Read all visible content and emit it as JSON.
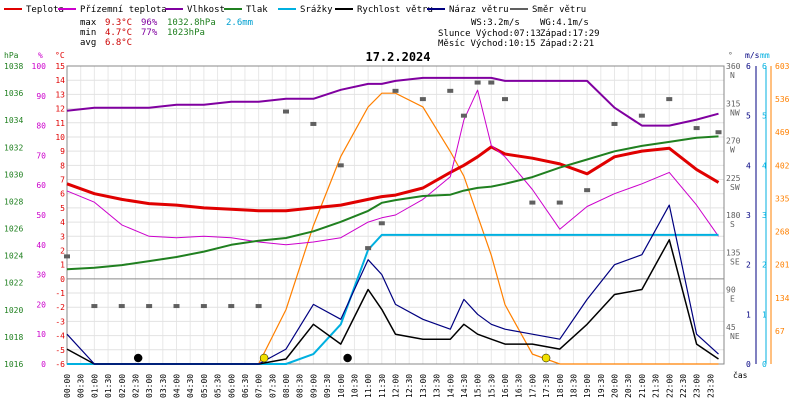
{
  "chart_data": {
    "type": "line",
    "title": "17.2.2024",
    "legend": [
      {
        "label": "Teplota",
        "color": "#e00000"
      },
      {
        "label": "Přízemní teplota",
        "color": "#cc00cc"
      },
      {
        "label": "Vlhkost",
        "color": "#8000a0"
      },
      {
        "label": "Tlak",
        "color": "#208020"
      },
      {
        "label": "Srážky",
        "color": "#00b0e0"
      },
      {
        "label": "Rychlost větru",
        "color": "#000000"
      },
      {
        "label": "Náraz větru",
        "color": "#000080"
      },
      {
        "label": "Směr větru",
        "color": "#606060"
      }
    ],
    "stats": [
      {
        "label": "max",
        "temp": "9.3°C",
        "hum": "96%",
        "press": "1032.8hPa",
        "rain": "2.6mm"
      },
      {
        "label": "min",
        "temp": "4.7°C",
        "hum": "77%",
        "press": "1023hPa",
        "rain": ""
      },
      {
        "label": "avg",
        "temp": "6.8°C",
        "hum": "",
        "press": "",
        "rain": ""
      }
    ],
    "info": {
      "ws": "WS:3.2m/s",
      "wg": "WG:4.1m/s",
      "sun_rise": "Slunce  Východ:07:13",
      "sun_set": "Západ:17:29",
      "moon_rise": "Měsíc  Východ:10:15",
      "moon_set": "Západ:2:21"
    },
    "axes": {
      "hpa": {
        "label": "hPa",
        "ticks": [
          "1016",
          "1018",
          "1020",
          "1022",
          "1024",
          "1026",
          "1028",
          "1030",
          "1032",
          "1034",
          "1036",
          "1038"
        ],
        "color": "#208020"
      },
      "pct": {
        "label": "%",
        "ticks": [
          "0",
          "10",
          "20",
          "30",
          "40",
          "50",
          "60",
          "70",
          "80",
          "90",
          "100"
        ],
        "color": "#cc00cc"
      },
      "deg": {
        "label": "°C",
        "ticks": [
          "-6",
          "-5",
          "-4",
          "-3",
          "-2",
          "-1",
          "0",
          "1",
          "2",
          "3",
          "4",
          "5",
          "6",
          "7",
          "8",
          "9",
          "10",
          "11",
          "12",
          "13",
          "14",
          "15"
        ],
        "color": "#e00000"
      },
      "dir": {
        "label": "°",
        "ticks": [
          "45 NE",
          "90 E",
          "135 SE",
          "180 S",
          "225 SW",
          "270 W",
          "315 NW",
          "360 N"
        ],
        "color": "#606060"
      },
      "ms": {
        "label": "m/s",
        "ticks": [
          "0",
          "1",
          "2",
          "3",
          "4",
          "5",
          "6"
        ],
        "color": "#000080"
      },
      "mm": {
        "label": "mm",
        "ticks": [
          "0",
          "1",
          "2",
          "3",
          "4",
          "5",
          "6"
        ],
        "color": "#00b0e0"
      },
      "solar": {
        "ticks": [
          "67",
          "134",
          "201",
          "268",
          "335",
          "402",
          "469",
          "536",
          "603"
        ],
        "color": "#ff8000"
      },
      "x_label": "čas",
      "x_ticks": [
        "00:00",
        "00:30",
        "01:00",
        "01:30",
        "02:00",
        "02:30",
        "03:00",
        "03:30",
        "04:00",
        "04:30",
        "05:00",
        "05:30",
        "06:00",
        "06:30",
        "07:00",
        "07:30",
        "08:00",
        "08:30",
        "09:00",
        "09:30",
        "10:00",
        "10:30",
        "11:00",
        "11:30",
        "12:00",
        "12:30",
        "13:00",
        "13:30",
        "14:00",
        "14:30",
        "15:00",
        "15:30",
        "16:00",
        "16:30",
        "17:00",
        "17:30",
        "18:00",
        "18:30",
        "19:00",
        "19:30",
        "20:00",
        "20:30",
        "21:00",
        "21:30",
        "22:00",
        "22:30",
        "23:00",
        "23:30"
      ]
    },
    "x_hours": [
      0,
      1,
      2,
      3,
      4,
      5,
      6,
      7,
      8,
      9,
      10,
      11,
      11.5,
      12,
      13,
      14,
      14.5,
      15,
      15.5,
      16,
      17,
      18,
      19,
      20,
      21,
      22,
      23,
      23.8
    ],
    "series": [
      {
        "name": "Teplota",
        "unit": "°C",
        "values": [
          6.7,
          6.0,
          5.6,
          5.3,
          5.2,
          5.0,
          4.9,
          4.8,
          4.8,
          5.0,
          5.2,
          5.6,
          5.8,
          5.9,
          6.4,
          7.5,
          8.0,
          8.6,
          9.3,
          8.8,
          8.5,
          8.1,
          7.4,
          8.6,
          9.0,
          9.2,
          7.7,
          6.8
        ]
      },
      {
        "name": "Přízemní teplota",
        "unit": "°C",
        "values": [
          6.2,
          5.4,
          3.8,
          3.0,
          2.9,
          3.0,
          2.9,
          2.6,
          2.4,
          2.6,
          2.9,
          4.0,
          4.3,
          4.5,
          5.6,
          7.2,
          11.2,
          13.3,
          9.4,
          8.6,
          6.3,
          3.5,
          5.1,
          6.0,
          6.7,
          7.5,
          5.2,
          3.0
        ]
      },
      {
        "name": "Vlhkost",
        "unit": "%",
        "values": [
          85,
          86,
          86,
          86,
          87,
          87,
          88,
          88,
          89,
          89,
          92,
          94,
          94,
          95,
          96,
          96,
          96,
          96,
          96,
          95,
          95,
          95,
          95,
          86,
          80,
          80,
          82,
          84
        ]
      },
      {
        "name": "Tlak",
        "unit": "hPa",
        "values": [
          1023.0,
          1023.1,
          1023.3,
          1023.6,
          1023.9,
          1024.3,
          1024.8,
          1025.1,
          1025.3,
          1025.8,
          1026.5,
          1027.3,
          1027.9,
          1028.1,
          1028.4,
          1028.5,
          1028.8,
          1029.0,
          1029.1,
          1029.3,
          1029.8,
          1030.5,
          1031.1,
          1031.7,
          1032.1,
          1032.4,
          1032.7,
          1032.8
        ]
      },
      {
        "name": "Srážky",
        "unit": "mm",
        "values": [
          0,
          0,
          0,
          0,
          0,
          0,
          0,
          0,
          0,
          0.2,
          0.8,
          2.3,
          2.6,
          2.6,
          2.6,
          2.6,
          2.6,
          2.6,
          2.6,
          2.6,
          2.6,
          2.6,
          2.6,
          2.6,
          2.6,
          2.6,
          2.6,
          2.6
        ]
      },
      {
        "name": "Rychlost větru",
        "unit": "m/s",
        "values": [
          0.3,
          0,
          0,
          0,
          0,
          0,
          0,
          0,
          0.1,
          0.8,
          0.4,
          1.5,
          1.1,
          0.6,
          0.5,
          0.5,
          0.8,
          0.6,
          0.5,
          0.4,
          0.4,
          0.3,
          0.8,
          1.4,
          1.5,
          2.5,
          0.4,
          0.1
        ]
      },
      {
        "name": "Náraz větru",
        "unit": "m/s",
        "values": [
          0.6,
          0,
          0,
          0,
          0,
          0,
          0,
          0,
          0.3,
          1.2,
          0.9,
          2.1,
          1.8,
          1.2,
          0.9,
          0.7,
          1.3,
          1.0,
          0.8,
          0.7,
          0.6,
          0.5,
          1.3,
          2.0,
          2.2,
          3.2,
          0.6,
          0.2
        ]
      },
      {
        "name": "Směr větru",
        "unit": "°",
        "values": [
          130,
          70,
          70,
          70,
          70,
          70,
          70,
          70,
          305,
          290,
          240,
          140,
          170,
          330,
          320,
          330,
          300,
          340,
          340,
          320,
          195,
          195,
          210,
          290,
          300,
          320,
          285,
          280
        ]
      }
    ],
    "solar_radiation": {
      "unit": "W/m2",
      "values": [
        0,
        0,
        0,
        0,
        0,
        0,
        0,
        0,
        110,
        280,
        420,
        520,
        548,
        548,
        520,
        430,
        380,
        300,
        220,
        120,
        20,
        0,
        0,
        0,
        0,
        0,
        0,
        0
      ]
    },
    "y_ranges": {
      "temp": [
        -6,
        15
      ],
      "hum": [
        0,
        100
      ],
      "press": [
        1016,
        1038
      ],
      "wind": [
        0,
        6
      ],
      "rain": [
        0,
        6
      ],
      "dir": [
        0,
        360
      ],
      "solar": [
        0,
        603
      ]
    }
  }
}
